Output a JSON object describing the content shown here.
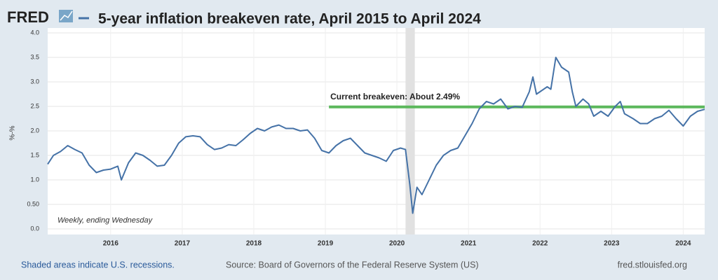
{
  "chart_data": {
    "type": "line",
    "logo": "FRED",
    "title": "5-year inflation breakeven rate, April 2015 to April 2024",
    "y_label": "%-%",
    "note": "Weekly, ending Wednesday",
    "footer_left": "Shaded areas indicate U.S. recessions.",
    "footer_center": "Source: Board of Governors of the Federal Reserve System (US)",
    "footer_right": "fred.stlouisfed.org",
    "xlim": [
      2015.12,
      2024.3
    ],
    "xticks": [
      2016,
      2017,
      2018,
      2019,
      2020,
      2021,
      2022,
      2023,
      2024
    ],
    "ylim": [
      0,
      4
    ],
    "yticks": [
      {
        "value": 0,
        "label": "0.0"
      },
      {
        "value": 0.5,
        "label": "0.50"
      },
      {
        "value": 1,
        "label": "1.0"
      },
      {
        "value": 1.5,
        "label": "1.5"
      },
      {
        "value": 2,
        "label": "2.0"
      },
      {
        "value": 2.5,
        "label": "2.5"
      },
      {
        "value": 3,
        "label": "3.0"
      },
      {
        "value": 3.5,
        "label": "3.5"
      },
      {
        "value": 4,
        "label": "4.0"
      }
    ],
    "grid": true,
    "recessions": [
      [
        2020.12,
        2020.25
      ]
    ],
    "reference_line": {
      "value": 2.49,
      "x_start": 2019.05,
      "label": "Current breakeven: About 2.49%",
      "color": "#5cb85c"
    },
    "series": [
      {
        "name": "5-year inflation breakeven rate",
        "color": "#4572a7",
        "x": [
          2015.12,
          2015.2,
          2015.3,
          2015.4,
          2015.5,
          2015.6,
          2015.7,
          2015.8,
          2015.9,
          2016.0,
          2016.1,
          2016.15,
          2016.25,
          2016.35,
          2016.45,
          2016.55,
          2016.65,
          2016.75,
          2016.85,
          2016.95,
          2017.05,
          2017.15,
          2017.25,
          2017.35,
          2017.45,
          2017.55,
          2017.65,
          2017.75,
          2017.85,
          2017.95,
          2018.05,
          2018.15,
          2018.25,
          2018.35,
          2018.45,
          2018.55,
          2018.65,
          2018.75,
          2018.85,
          2018.95,
          2019.05,
          2019.15,
          2019.25,
          2019.35,
          2019.45,
          2019.55,
          2019.65,
          2019.75,
          2019.85,
          2019.95,
          2020.05,
          2020.12,
          2020.18,
          2020.22,
          2020.28,
          2020.35,
          2020.45,
          2020.55,
          2020.65,
          2020.75,
          2020.85,
          2020.95,
          2021.05,
          2021.15,
          2021.25,
          2021.35,
          2021.45,
          2021.55,
          2021.65,
          2021.75,
          2021.85,
          2021.9,
          2021.95,
          2022.0,
          2022.1,
          2022.15,
          2022.22,
          2022.3,
          2022.4,
          2022.45,
          2022.5,
          2022.6,
          2022.68,
          2022.75,
          2022.85,
          2022.95,
          2023.05,
          2023.12,
          2023.18,
          2023.3,
          2023.4,
          2023.5,
          2023.6,
          2023.7,
          2023.8,
          2023.9,
          2024.0,
          2024.1,
          2024.2,
          2024.3
        ],
        "values": [
          1.32,
          1.5,
          1.58,
          1.7,
          1.62,
          1.55,
          1.3,
          1.15,
          1.2,
          1.22,
          1.28,
          1.0,
          1.35,
          1.55,
          1.5,
          1.4,
          1.28,
          1.3,
          1.5,
          1.75,
          1.88,
          1.9,
          1.88,
          1.72,
          1.62,
          1.65,
          1.72,
          1.7,
          1.82,
          1.95,
          2.05,
          2.0,
          2.08,
          2.12,
          2.05,
          2.05,
          2.0,
          2.02,
          1.85,
          1.6,
          1.55,
          1.7,
          1.8,
          1.85,
          1.7,
          1.55,
          1.5,
          1.45,
          1.38,
          1.6,
          1.65,
          1.62,
          0.9,
          0.32,
          0.85,
          0.7,
          1.0,
          1.3,
          1.5,
          1.6,
          1.65,
          1.9,
          2.15,
          2.45,
          2.6,
          2.55,
          2.65,
          2.45,
          2.5,
          2.48,
          2.8,
          3.1,
          2.75,
          2.8,
          2.9,
          2.85,
          3.5,
          3.3,
          3.2,
          2.8,
          2.5,
          2.65,
          2.55,
          2.3,
          2.4,
          2.3,
          2.5,
          2.6,
          2.35,
          2.25,
          2.15,
          2.15,
          2.25,
          2.3,
          2.42,
          2.25,
          2.1,
          2.3,
          2.4,
          2.44
        ]
      }
    ]
  }
}
